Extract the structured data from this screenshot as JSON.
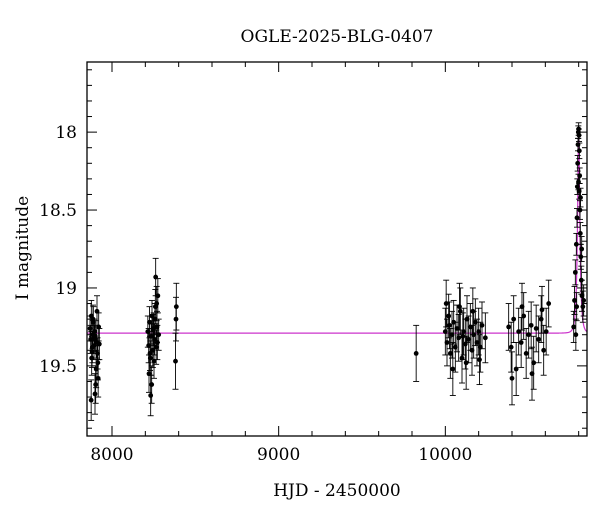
{
  "chart_data": {
    "type": "scatter",
    "title": "OGLE-2025-BLG-0407",
    "xlabel": "HJD - 2450000",
    "ylabel": "I magnitude",
    "xlim": [
      7850,
      10850
    ],
    "ylim": [
      19.95,
      17.55
    ],
    "y_inverted": true,
    "grid": false,
    "x_ticks": [
      8000,
      9000,
      10000
    ],
    "y_ticks": [
      18,
      18.5,
      19,
      19.5
    ],
    "colors": {
      "points": "#000000",
      "model": "#cc33cc"
    },
    "baseline_mag": 19.29,
    "peak": {
      "t0": 10800,
      "mag": 17.98
    },
    "series": [
      {
        "points": [
          [
            7868,
            19.26,
            0.08
          ],
          [
            7872,
            19.33,
            0.09
          ],
          [
            7876,
            19.18,
            0.1
          ],
          [
            7880,
            19.41,
            0.1
          ],
          [
            7884,
            19.3,
            0.09
          ],
          [
            7888,
            19.22,
            0.1
          ],
          [
            7892,
            19.37,
            0.09
          ],
          [
            7896,
            19.28,
            0.08
          ],
          [
            7900,
            19.31,
            0.1
          ],
          [
            7905,
            19.52,
            0.12
          ],
          [
            7909,
            19.35,
            0.1
          ],
          [
            7913,
            19.42,
            0.1
          ],
          [
            7917,
            19.58,
            0.12
          ],
          [
            7920,
            19.25,
            0.09
          ],
          [
            7924,
            19.36,
            0.1
          ],
          [
            7878,
            19.45,
            0.11
          ],
          [
            7886,
            19.2,
            0.09
          ],
          [
            7894,
            19.33,
            0.09
          ],
          [
            7902,
            19.62,
            0.12
          ],
          [
            7910,
            19.15,
            0.1
          ],
          [
            7875,
            19.72,
            0.13
          ],
          [
            7898,
            19.68,
            0.13
          ],
          [
            7915,
            19.48,
            0.11
          ],
          [
            7882,
            19.38,
            0.1
          ],
          [
            8215,
            19.28,
            0.1
          ],
          [
            8220,
            19.37,
            0.11
          ],
          [
            8225,
            19.22,
            0.1
          ],
          [
            8230,
            19.45,
            0.11
          ],
          [
            8235,
            19.31,
            0.1
          ],
          [
            8240,
            19.18,
            0.1
          ],
          [
            8245,
            19.4,
            0.11
          ],
          [
            8250,
            19.26,
            0.1
          ],
          [
            8255,
            19.33,
            0.1
          ],
          [
            8260,
            19.12,
            0.11
          ],
          [
            8265,
            19.38,
            0.11
          ],
          [
            8270,
            19.25,
            0.1
          ],
          [
            8275,
            19.05,
            0.11
          ],
          [
            8280,
            19.3,
            0.1
          ],
          [
            8222,
            19.55,
            0.12
          ],
          [
            8238,
            19.62,
            0.12
          ],
          [
            8252,
            19.47,
            0.11
          ],
          [
            8268,
            19.1,
            0.11
          ],
          [
            8232,
            19.69,
            0.13
          ],
          [
            8258,
            19.2,
            0.1
          ],
          [
            8262,
            18.93,
            0.12
          ],
          [
            8272,
            19.35,
            0.11
          ],
          [
            8228,
            19.42,
            0.11
          ],
          [
            8246,
            19.27,
            0.1
          ],
          [
            8386,
            19.12,
            0.15
          ],
          [
            8384,
            19.2,
            0.14
          ],
          [
            8381,
            19.47,
            0.18
          ],
          [
            9825,
            19.42,
            0.18
          ],
          [
            10000,
            19.28,
            0.15
          ],
          [
            10010,
            19.35,
            0.15
          ],
          [
            10020,
            19.18,
            0.14
          ],
          [
            10030,
            19.42,
            0.16
          ],
          [
            10040,
            19.3,
            0.15
          ],
          [
            10050,
            19.22,
            0.14
          ],
          [
            10060,
            19.38,
            0.16
          ],
          [
            10070,
            19.26,
            0.15
          ],
          [
            10080,
            19.32,
            0.15
          ],
          [
            10090,
            19.15,
            0.15
          ],
          [
            10100,
            19.45,
            0.16
          ],
          [
            10110,
            19.28,
            0.15
          ],
          [
            10120,
            19.36,
            0.16
          ],
          [
            10130,
            19.2,
            0.15
          ],
          [
            10140,
            19.33,
            0.15
          ],
          [
            10150,
            19.25,
            0.15
          ],
          [
            10160,
            19.4,
            0.16
          ],
          [
            10170,
            19.3,
            0.15
          ],
          [
            10180,
            19.22,
            0.15
          ],
          [
            10190,
            19.35,
            0.15
          ],
          [
            10200,
            19.28,
            0.15
          ],
          [
            10210,
            19.38,
            0.16
          ],
          [
            10220,
            19.24,
            0.15
          ],
          [
            10240,
            19.32,
            0.16
          ],
          [
            10005,
            19.1,
            0.15
          ],
          [
            10045,
            19.52,
            0.17
          ],
          [
            10085,
            19.12,
            0.15
          ],
          [
            10125,
            19.48,
            0.17
          ],
          [
            10165,
            19.15,
            0.15
          ],
          [
            10205,
            19.46,
            0.16
          ],
          [
            10025,
            19.24,
            0.15
          ],
          [
            10105,
            19.31,
            0.15
          ],
          [
            10380,
            19.25,
            0.15
          ],
          [
            10395,
            19.38,
            0.16
          ],
          [
            10410,
            19.2,
            0.15
          ],
          [
            10425,
            19.52,
            0.17
          ],
          [
            10440,
            19.28,
            0.15
          ],
          [
            10455,
            19.35,
            0.16
          ],
          [
            10470,
            19.18,
            0.15
          ],
          [
            10485,
            19.42,
            0.16
          ],
          [
            10500,
            19.3,
            0.15
          ],
          [
            10515,
            19.24,
            0.15
          ],
          [
            10530,
            19.48,
            0.17
          ],
          [
            10545,
            19.26,
            0.15
          ],
          [
            10560,
            19.33,
            0.15
          ],
          [
            10575,
            19.2,
            0.15
          ],
          [
            10590,
            19.4,
            0.16
          ],
          [
            10605,
            19.28,
            0.15
          ],
          [
            10620,
            19.1,
            0.15
          ],
          [
            10400,
            19.58,
            0.17
          ],
          [
            10460,
            19.12,
            0.15
          ],
          [
            10520,
            19.55,
            0.17
          ],
          [
            10580,
            19.14,
            0.15
          ],
          [
            10770,
            19.25,
            0.1
          ],
          [
            10775,
            19.08,
            0.09
          ],
          [
            10780,
            18.9,
            0.08
          ],
          [
            10783,
            19.3,
            0.1
          ],
          [
            10786,
            18.72,
            0.07
          ],
          [
            10788,
            19.12,
            0.09
          ],
          [
            10790,
            18.55,
            0.06
          ],
          [
            10792,
            18.35,
            0.05
          ],
          [
            10794,
            18.2,
            0.05
          ],
          [
            10796,
            18.08,
            0.04
          ],
          [
            10798,
            18.0,
            0.04
          ],
          [
            10800,
            17.98,
            0.04
          ],
          [
            10802,
            18.02,
            0.04
          ],
          [
            10804,
            18.12,
            0.05
          ],
          [
            10806,
            18.28,
            0.05
          ],
          [
            10808,
            18.5,
            0.06
          ],
          [
            10810,
            18.65,
            0.07
          ],
          [
            10813,
            18.8,
            0.08
          ],
          [
            10816,
            18.95,
            0.09
          ],
          [
            10820,
            19.05,
            0.1
          ],
          [
            10825,
            19.12,
            0.1
          ],
          [
            10799,
            18.32,
            0.05
          ],
          [
            10803,
            18.38,
            0.05
          ],
          [
            10811,
            18.42,
            0.06
          ],
          [
            10818,
            18.75,
            0.08
          ],
          [
            10830,
            19.08,
            0.1
          ]
        ]
      }
    ]
  }
}
